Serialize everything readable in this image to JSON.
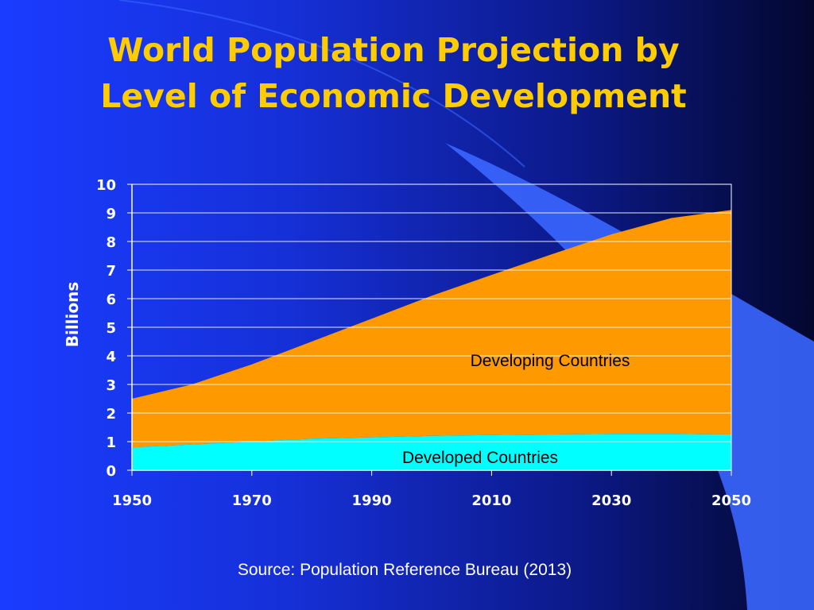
{
  "title_lines": [
    "World Population Projection by",
    "Level of Economic Development"
  ],
  "source": "Source: Population Reference Bureau (2013)",
  "colors": {
    "title": "#ffcc00",
    "developing": "#ff9900",
    "developed": "#00ffff",
    "text": "#ffffff",
    "accent_swoosh": "#3a66ff"
  },
  "chart_data": {
    "type": "area",
    "stacked": true,
    "title": "",
    "xlabel": "",
    "ylabel": "Billions",
    "xlim": [
      1950,
      2050
    ],
    "ylim": [
      0,
      10
    ],
    "x_ticks": [
      "1950",
      "1970",
      "1990",
      "2010",
      "2030",
      "2050"
    ],
    "y_ticks": [
      "0",
      "1",
      "2",
      "3",
      "4",
      "5",
      "6",
      "7",
      "8",
      "9",
      "10"
    ],
    "grid": "horizontal",
    "x": [
      1950,
      1960,
      1970,
      1980,
      1990,
      2000,
      2010,
      2020,
      2030,
      2040,
      2050
    ],
    "series": [
      {
        "name": "Developed Countries",
        "values": [
          0.8,
          0.9,
          1.0,
          1.1,
          1.15,
          1.2,
          1.23,
          1.25,
          1.27,
          1.27,
          1.25
        ]
      },
      {
        "name": "Developing Countries",
        "values": [
          1.7,
          2.1,
          2.7,
          3.4,
          4.15,
          4.9,
          5.6,
          6.3,
          6.98,
          7.55,
          7.85
        ]
      }
    ]
  }
}
